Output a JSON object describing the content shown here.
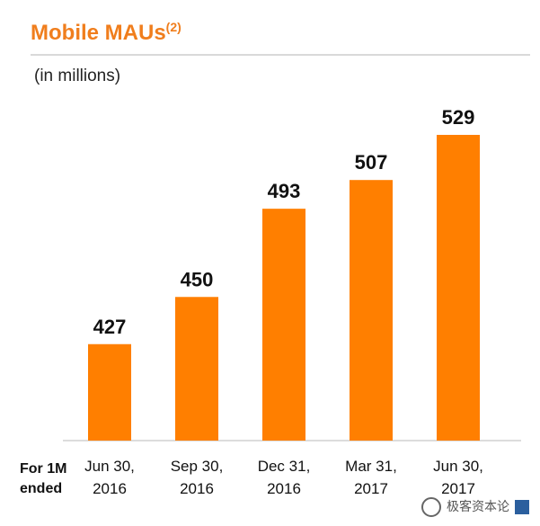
{
  "header": {
    "title": "Mobile MAUs",
    "title_sup": "(2)",
    "unit_label": "(in millions)"
  },
  "xaxis_prefix": "For 1M\nended",
  "watermark": "极客资本论",
  "chart_data": {
    "type": "bar",
    "title": "Mobile MAUs",
    "ylabel": "",
    "xlabel": "",
    "categories": [
      "Jun 30, 2016",
      "Sep 30, 2016",
      "Dec 31, 2016",
      "Mar 31, 2017",
      "Jun 30, 2017"
    ],
    "values": [
      427,
      450,
      493,
      507,
      529
    ],
    "ylim": [
      380,
      535
    ],
    "bar_color": "#ff7f00",
    "grid": false,
    "legend": "none"
  }
}
